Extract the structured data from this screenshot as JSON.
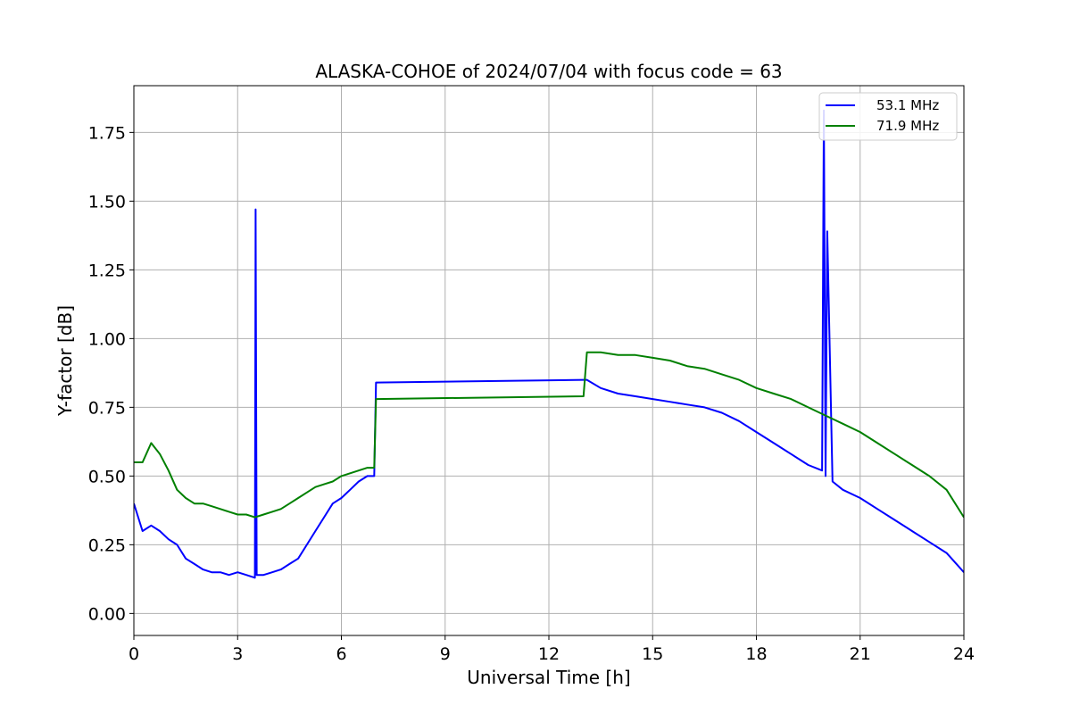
{
  "chart_data": {
    "type": "line",
    "title": "ALASKA-COHOE of 2024/07/04 with focus code = 63",
    "xlabel": "Universal Time [h]",
    "ylabel": "Y-factor [dB]",
    "xlim": [
      0,
      24
    ],
    "ylim": [
      -0.08,
      1.92
    ],
    "xticks": [
      0,
      3,
      6,
      9,
      12,
      15,
      18,
      21,
      24
    ],
    "xtick_labels": [
      "0",
      "3",
      "6",
      "9",
      "12",
      "15",
      "18",
      "21",
      "24"
    ],
    "yticks": [
      0.0,
      0.25,
      0.5,
      0.75,
      1.0,
      1.25,
      1.5,
      1.75
    ],
    "ytick_labels": [
      "0.00",
      "0.25",
      "0.50",
      "0.75",
      "1.00",
      "1.25",
      "1.50",
      "1.75"
    ],
    "grid": true,
    "legend_position": "top-right",
    "series": [
      {
        "name": "53.1 MHz",
        "color": "#0000ff",
        "x": [
          0,
          0.25,
          0.5,
          0.75,
          1,
          1.25,
          1.5,
          1.75,
          2,
          2.25,
          2.5,
          2.75,
          3,
          3.25,
          3.5,
          3.52,
          3.55,
          3.75,
          4,
          4.25,
          4.5,
          4.75,
          5,
          5.25,
          5.5,
          5.75,
          6,
          6.25,
          6.5,
          6.75,
          6.95,
          7.0,
          13.0,
          13.1,
          13.5,
          14,
          14.5,
          15,
          15.5,
          16,
          16.5,
          17,
          17.5,
          18,
          18.5,
          19,
          19.5,
          19.9,
          19.95,
          20.0,
          20.05,
          20.2,
          20.5,
          21,
          21.5,
          22,
          22.5,
          23,
          23.5,
          24
        ],
        "y": [
          0.4,
          0.3,
          0.32,
          0.3,
          0.27,
          0.25,
          0.2,
          0.18,
          0.16,
          0.15,
          0.15,
          0.14,
          0.15,
          0.14,
          0.13,
          1.47,
          0.14,
          0.14,
          0.15,
          0.16,
          0.18,
          0.2,
          0.25,
          0.3,
          0.35,
          0.4,
          0.42,
          0.45,
          0.48,
          0.5,
          0.5,
          0.84,
          0.85,
          0.85,
          0.82,
          0.8,
          0.79,
          0.78,
          0.77,
          0.76,
          0.75,
          0.73,
          0.7,
          0.66,
          0.62,
          0.58,
          0.54,
          0.52,
          1.83,
          0.5,
          1.39,
          0.48,
          0.45,
          0.42,
          0.38,
          0.34,
          0.3,
          0.26,
          0.22,
          0.15
        ]
      },
      {
        "name": "71.9 MHz",
        "color": "#008000",
        "x": [
          0,
          0.25,
          0.5,
          0.75,
          1,
          1.25,
          1.5,
          1.75,
          2,
          2.25,
          2.5,
          2.75,
          3,
          3.25,
          3.5,
          3.75,
          4,
          4.25,
          4.5,
          4.75,
          5,
          5.25,
          5.5,
          5.75,
          6,
          6.25,
          6.5,
          6.75,
          6.95,
          7.0,
          13.0,
          13.1,
          13.5,
          14,
          14.5,
          15,
          15.5,
          16,
          16.5,
          17,
          17.5,
          18,
          18.5,
          19,
          19.5,
          20,
          20.5,
          21,
          21.5,
          22,
          22.5,
          23,
          23.5,
          24
        ],
        "y": [
          0.55,
          0.55,
          0.62,
          0.58,
          0.52,
          0.45,
          0.42,
          0.4,
          0.4,
          0.39,
          0.38,
          0.37,
          0.36,
          0.36,
          0.35,
          0.36,
          0.37,
          0.38,
          0.4,
          0.42,
          0.44,
          0.46,
          0.47,
          0.48,
          0.5,
          0.51,
          0.52,
          0.53,
          0.53,
          0.78,
          0.79,
          0.95,
          0.95,
          0.94,
          0.94,
          0.93,
          0.92,
          0.9,
          0.89,
          0.87,
          0.85,
          0.82,
          0.8,
          0.78,
          0.75,
          0.72,
          0.69,
          0.66,
          0.62,
          0.58,
          0.54,
          0.5,
          0.45,
          0.35
        ]
      }
    ]
  }
}
